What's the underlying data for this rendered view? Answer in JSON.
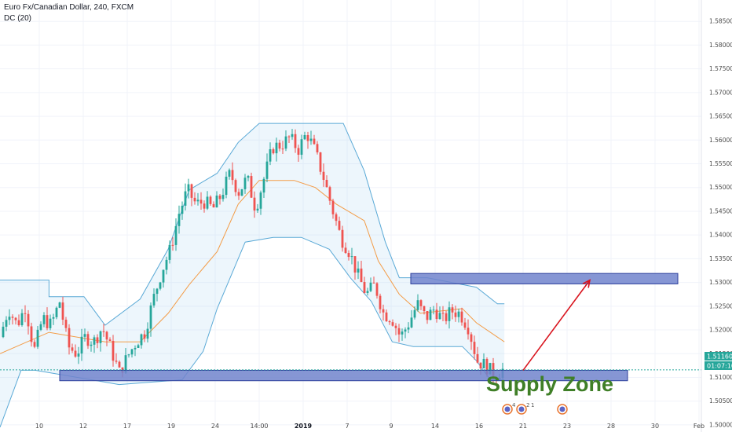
{
  "legend": {
    "symbol_line": "Euro Fx/Canadian Dollar, 240, FXCM",
    "indicator": "DC (20)"
  },
  "price_label": "1.51160",
  "countdown_label": "01:07:10",
  "annotation": "Supply Zone",
  "event_badges": [
    "4",
    "2",
    "1"
  ],
  "colors": {
    "up": "#26a69a",
    "down": "#ef5350",
    "band": "#5aa9d6",
    "band_fill": "rgba(173,216,240,0.22)",
    "basis": "#f39c47",
    "zone_fill": "#7184cc",
    "zone_stroke": "#2c3e9b",
    "arrow": "#d9141e",
    "annotation": "#3f7f27",
    "price_tag": "#26a69a"
  },
  "chart_data": {
    "type": "candlestick",
    "title": "Euro Fx/Canadian Dollar, 240, FXCM",
    "indicator": "DC (20)",
    "x_ticks": [
      "10",
      "12",
      "17",
      "19",
      "24",
      "14:00",
      "2019",
      "7",
      "9",
      "14",
      "16",
      "21",
      "23",
      "28",
      "30",
      "Feb"
    ],
    "y_ticks": [
      "1.58500",
      "1.58000",
      "1.57500",
      "1.57000",
      "1.56500",
      "1.56000",
      "1.55500",
      "1.55000",
      "1.54500",
      "1.54000",
      "1.53500",
      "1.53000",
      "1.52500",
      "1.52000",
      "1.51500",
      "1.51000",
      "1.50500",
      "1.50000"
    ],
    "ylim": [
      1.4985,
      1.5895
    ],
    "last_price": 1.5116,
    "path_points": [
      1.5185,
      1.5245,
      1.521,
      1.525,
      1.5155,
      1.5225,
      1.521,
      1.526,
      1.5165,
      1.515,
      1.5185,
      1.5175,
      1.5205,
      1.516,
      1.511,
      1.5145,
      1.5175,
      1.5195,
      1.5265,
      1.5325,
      1.537,
      1.5445,
      1.5495,
      1.5465,
      1.547,
      1.5455,
      1.5485,
      1.553,
      1.549,
      1.552,
      1.5455,
      1.552,
      1.5585,
      1.559,
      1.5605,
      1.558,
      1.5615,
      1.5575,
      1.552,
      1.5455,
      1.5395,
      1.5365,
      1.5315,
      1.5275,
      1.5295,
      1.5235,
      1.5225,
      1.5185,
      1.5215,
      1.5255,
      1.5225,
      1.5245,
      1.522,
      1.524,
      1.5235,
      1.5205,
      1.5135,
      1.5125,
      1.5105,
      1.5116
    ],
    "donchian": {
      "upper": [
        [
          0,
          1.5305
        ],
        [
          0.07,
          1.5305
        ],
        [
          0.07,
          1.527
        ],
        [
          0.12,
          1.527
        ],
        [
          0.15,
          1.521
        ],
        [
          0.2,
          1.5265
        ],
        [
          0.24,
          1.537
        ],
        [
          0.27,
          1.5495
        ],
        [
          0.31,
          1.553
        ],
        [
          0.34,
          1.5595
        ],
        [
          0.37,
          1.5635
        ],
        [
          0.42,
          1.5635
        ],
        [
          0.49,
          1.5635
        ],
        [
          0.52,
          1.5535
        ],
        [
          0.55,
          1.5385
        ],
        [
          0.57,
          1.531
        ],
        [
          0.61,
          1.531
        ],
        [
          0.68,
          1.529
        ],
        [
          0.71,
          1.5255
        ],
        [
          0.72,
          1.5255
        ]
      ],
      "lower": [
        [
          0,
          1.4995
        ],
        [
          0.03,
          1.5115
        ],
        [
          0.05,
          1.5115
        ],
        [
          0.15,
          1.509
        ],
        [
          0.17,
          1.5085
        ],
        [
          0.26,
          1.5095
        ],
        [
          0.29,
          1.5155
        ],
        [
          0.31,
          1.5245
        ],
        [
          0.35,
          1.5385
        ],
        [
          0.39,
          1.5395
        ],
        [
          0.43,
          1.5395
        ],
        [
          0.47,
          1.537
        ],
        [
          0.5,
          1.531
        ],
        [
          0.53,
          1.526
        ],
        [
          0.56,
          1.5175
        ],
        [
          0.59,
          1.5165
        ],
        [
          0.66,
          1.5165
        ],
        [
          0.68,
          1.5135
        ],
        [
          0.7,
          1.5095
        ],
        [
          0.72,
          1.5095
        ]
      ],
      "basis": [
        [
          0,
          1.515
        ],
        [
          0.07,
          1.5195
        ],
        [
          0.15,
          1.5175
        ],
        [
          0.2,
          1.5175
        ],
        [
          0.24,
          1.5235
        ],
        [
          0.27,
          1.5295
        ],
        [
          0.31,
          1.5365
        ],
        [
          0.34,
          1.5465
        ],
        [
          0.37,
          1.5515
        ],
        [
          0.42,
          1.5515
        ],
        [
          0.45,
          1.55
        ],
        [
          0.48,
          1.5465
        ],
        [
          0.52,
          1.543
        ],
        [
          0.54,
          1.5345
        ],
        [
          0.57,
          1.5275
        ],
        [
          0.6,
          1.5235
        ],
        [
          0.66,
          1.5245
        ],
        [
          0.68,
          1.5215
        ],
        [
          0.72,
          1.5175
        ]
      ]
    },
    "zones": [
      {
        "label": "lower",
        "from": 1.5093,
        "to": 1.5115
      },
      {
        "label": "upper",
        "from": 1.5297,
        "to": 1.5319
      }
    ],
    "arrow": {
      "from": 1.5115,
      "to": 1.5305
    }
  }
}
